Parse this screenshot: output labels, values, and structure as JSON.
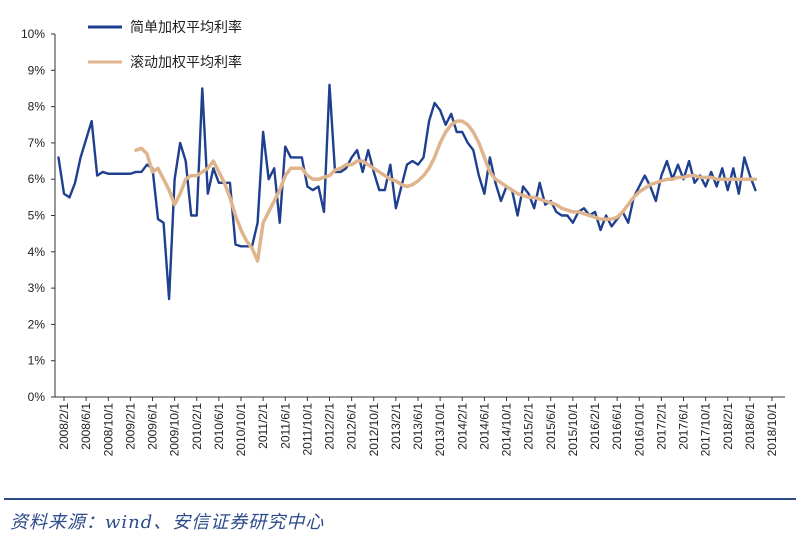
{
  "chart_data": {
    "type": "line",
    "title": "",
    "xlabel": "",
    "ylabel": "",
    "ylim": [
      0,
      10
    ],
    "y_ticks": [
      "0%",
      "1%",
      "2%",
      "3%",
      "4%",
      "5%",
      "6%",
      "7%",
      "8%",
      "9%",
      "10%"
    ],
    "x_ticks": [
      "2008/2/1",
      "2008/6/1",
      "2008/10/1",
      "2009/2/1",
      "2009/6/1",
      "2009/10/1",
      "2010/2/1",
      "2010/6/1",
      "2010/10/1",
      "2011/2/1",
      "2011/6/1",
      "2011/10/1",
      "2012/2/1",
      "2012/6/1",
      "2012/10/1",
      "2013/2/1",
      "2013/6/1",
      "2013/10/1",
      "2014/2/1",
      "2014/6/1",
      "2014/10/1",
      "2015/2/1",
      "2015/6/1",
      "2015/10/1",
      "2016/2/1",
      "2016/6/1",
      "2016/10/1",
      "2017/2/1",
      "2017/6/1",
      "2017/10/1",
      "2018/2/1",
      "2018/6/1",
      "2018/10/1"
    ],
    "legend_position": "top-left",
    "grid": false,
    "series": [
      {
        "name": "简单加权平均利率",
        "color": "#1f3f8f",
        "points": [
          [
            "2008/1/1",
            6.6
          ],
          [
            "2008/2/1",
            5.6
          ],
          [
            "2008/3/1",
            5.5
          ],
          [
            "2008/4/1",
            5.9
          ],
          [
            "2008/5/1",
            6.6
          ],
          [
            "2008/6/1",
            7.1
          ],
          [
            "2008/7/1",
            7.6
          ],
          [
            "2008/8/1",
            6.1
          ],
          [
            "2008/9/1",
            6.2
          ],
          [
            "2008/10/1",
            6.15
          ],
          [
            "2008/11/1",
            6.15
          ],
          [
            "2008/12/1",
            6.15
          ],
          [
            "2009/1/1",
            6.15
          ],
          [
            "2009/2/1",
            6.15
          ],
          [
            "2009/3/1",
            6.2
          ],
          [
            "2009/4/1",
            6.2
          ],
          [
            "2009/5/1",
            6.4
          ],
          [
            "2009/6/1",
            6.3
          ],
          [
            "2009/7/1",
            4.9
          ],
          [
            "2009/8/1",
            4.8
          ],
          [
            "2009/9/1",
            2.7
          ],
          [
            "2009/10/1",
            6.0
          ],
          [
            "2009/11/1",
            7.0
          ],
          [
            "2009/12/1",
            6.5
          ],
          [
            "2010/1/1",
            5.0
          ],
          [
            "2010/2/1",
            5.0
          ],
          [
            "2010/3/1",
            8.5
          ],
          [
            "2010/4/1",
            5.6
          ],
          [
            "2010/5/1",
            6.3
          ],
          [
            "2010/6/1",
            5.9
          ],
          [
            "2010/7/1",
            5.9
          ],
          [
            "2010/8/1",
            5.9
          ],
          [
            "2010/9/1",
            4.2
          ],
          [
            "2010/10/1",
            4.15
          ],
          [
            "2010/11/1",
            4.15
          ],
          [
            "2010/12/1",
            4.15
          ],
          [
            "2011/1/1",
            4.8
          ],
          [
            "2011/2/1",
            7.3
          ],
          [
            "2011/3/1",
            6.0
          ],
          [
            "2011/4/1",
            6.3
          ],
          [
            "2011/5/1",
            4.8
          ],
          [
            "2011/6/1",
            6.9
          ],
          [
            "2011/7/1",
            6.6
          ],
          [
            "2011/8/1",
            6.6
          ],
          [
            "2011/9/1",
            6.6
          ],
          [
            "2011/10/1",
            5.8
          ],
          [
            "2011/11/1",
            5.7
          ],
          [
            "2011/12/1",
            5.8
          ],
          [
            "2012/1/1",
            5.1
          ],
          [
            "2012/2/1",
            8.6
          ],
          [
            "2012/3/1",
            6.2
          ],
          [
            "2012/4/1",
            6.2
          ],
          [
            "2012/5/1",
            6.3
          ],
          [
            "2012/6/1",
            6.6
          ],
          [
            "2012/7/1",
            6.8
          ],
          [
            "2012/8/1",
            6.2
          ],
          [
            "2012/9/1",
            6.8
          ],
          [
            "2012/10/1",
            6.2
          ],
          [
            "2012/11/1",
            5.7
          ],
          [
            "2012/12/1",
            5.7
          ],
          [
            "2013/1/1",
            6.4
          ],
          [
            "2013/2/1",
            5.2
          ],
          [
            "2013/3/1",
            5.8
          ],
          [
            "2013/4/1",
            6.4
          ],
          [
            "2013/5/1",
            6.5
          ],
          [
            "2013/6/1",
            6.4
          ],
          [
            "2013/7/1",
            6.6
          ],
          [
            "2013/8/1",
            7.6
          ],
          [
            "2013/9/1",
            8.1
          ],
          [
            "2013/10/1",
            7.9
          ],
          [
            "2013/11/1",
            7.5
          ],
          [
            "2013/12/1",
            7.8
          ],
          [
            "2014/1/1",
            7.3
          ],
          [
            "2014/2/1",
            7.3
          ],
          [
            "2014/3/1",
            7.0
          ],
          [
            "2014/4/1",
            6.8
          ],
          [
            "2014/5/1",
            6.1
          ],
          [
            "2014/6/1",
            5.6
          ],
          [
            "2014/7/1",
            6.6
          ],
          [
            "2014/8/1",
            5.9
          ],
          [
            "2014/9/1",
            5.4
          ],
          [
            "2014/10/1",
            5.8
          ],
          [
            "2014/11/1",
            5.7
          ],
          [
            "2014/12/1",
            5.0
          ],
          [
            "2015/1/1",
            5.8
          ],
          [
            "2015/2/1",
            5.6
          ],
          [
            "2015/3/1",
            5.2
          ],
          [
            "2015/4/1",
            5.9
          ],
          [
            "2015/5/1",
            5.3
          ],
          [
            "2015/6/1",
            5.4
          ],
          [
            "2015/7/1",
            5.1
          ],
          [
            "2015/8/1",
            5.0
          ],
          [
            "2015/9/1",
            5.0
          ],
          [
            "2015/10/1",
            4.8
          ],
          [
            "2015/11/1",
            5.1
          ],
          [
            "2015/12/1",
            5.2
          ],
          [
            "2016/1/1",
            5.0
          ],
          [
            "2016/2/1",
            5.1
          ],
          [
            "2016/3/1",
            4.6
          ],
          [
            "2016/4/1",
            5.0
          ],
          [
            "2016/5/1",
            4.7
          ],
          [
            "2016/6/1",
            4.9
          ],
          [
            "2016/7/1",
            5.1
          ],
          [
            "2016/8/1",
            4.8
          ],
          [
            "2016/9/1",
            5.5
          ],
          [
            "2016/10/1",
            5.8
          ],
          [
            "2016/11/1",
            6.1
          ],
          [
            "2016/12/1",
            5.8
          ],
          [
            "2017/1/1",
            5.4
          ],
          [
            "2017/2/1",
            6.1
          ],
          [
            "2017/3/1",
            6.5
          ],
          [
            "2017/4/1",
            6.0
          ],
          [
            "2017/5/1",
            6.4
          ],
          [
            "2017/6/1",
            6.0
          ],
          [
            "2017/7/1",
            6.5
          ],
          [
            "2017/8/1",
            5.9
          ],
          [
            "2017/9/1",
            6.1
          ],
          [
            "2017/10/1",
            5.8
          ],
          [
            "2017/11/1",
            6.2
          ],
          [
            "2017/12/1",
            5.8
          ],
          [
            "2018/1/1",
            6.3
          ],
          [
            "2018/2/1",
            5.7
          ],
          [
            "2018/3/1",
            6.3
          ],
          [
            "2018/4/1",
            5.6
          ],
          [
            "2018/5/1",
            6.6
          ],
          [
            "2018/6/1",
            6.1
          ],
          [
            "2018/7/1",
            5.7
          ]
        ]
      },
      {
        "name": "滚动加权平均利率",
        "color": "#e0b48c",
        "points": [
          [
            "2009/3/1",
            6.8
          ],
          [
            "2009/4/1",
            6.85
          ],
          [
            "2009/5/1",
            6.7
          ],
          [
            "2009/6/1",
            6.2
          ],
          [
            "2009/7/1",
            6.3
          ],
          [
            "2009/8/1",
            6.0
          ],
          [
            "2009/9/1",
            5.7
          ],
          [
            "2009/10/1",
            5.3
          ],
          [
            "2009/11/1",
            5.6
          ],
          [
            "2009/12/1",
            6.0
          ],
          [
            "2010/1/1",
            6.1
          ],
          [
            "2010/2/1",
            6.1
          ],
          [
            "2010/3/1",
            6.2
          ],
          [
            "2010/4/1",
            6.3
          ],
          [
            "2010/5/1",
            6.5
          ],
          [
            "2010/6/1",
            6.2
          ],
          [
            "2010/7/1",
            5.9
          ],
          [
            "2010/8/1",
            5.5
          ],
          [
            "2010/9/1",
            5.0
          ],
          [
            "2010/10/1",
            4.6
          ],
          [
            "2010/11/1",
            4.3
          ],
          [
            "2010/12/1",
            4.1
          ],
          [
            "2011/1/1",
            3.75
          ],
          [
            "2011/2/1",
            4.8
          ],
          [
            "2011/3/1",
            5.1
          ],
          [
            "2011/4/1",
            5.4
          ],
          [
            "2011/5/1",
            5.7
          ],
          [
            "2011/6/1",
            6.1
          ],
          [
            "2011/7/1",
            6.3
          ],
          [
            "2011/8/1",
            6.3
          ],
          [
            "2011/9/1",
            6.3
          ],
          [
            "2011/10/1",
            6.1
          ],
          [
            "2011/11/1",
            6.0
          ],
          [
            "2011/12/1",
            6.0
          ],
          [
            "2012/1/1",
            6.05
          ],
          [
            "2012/2/1",
            6.1
          ],
          [
            "2012/3/1",
            6.25
          ],
          [
            "2012/4/1",
            6.3
          ],
          [
            "2012/5/1",
            6.4
          ],
          [
            "2012/6/1",
            6.4
          ],
          [
            "2012/7/1",
            6.5
          ],
          [
            "2012/8/1",
            6.5
          ],
          [
            "2012/9/1",
            6.4
          ],
          [
            "2012/10/1",
            6.3
          ],
          [
            "2012/11/1",
            6.2
          ],
          [
            "2012/12/1",
            6.1
          ],
          [
            "2013/1/1",
            6.0
          ],
          [
            "2013/2/1",
            5.95
          ],
          [
            "2013/3/1",
            5.85
          ],
          [
            "2013/4/1",
            5.8
          ],
          [
            "2013/5/1",
            5.85
          ],
          [
            "2013/6/1",
            5.95
          ],
          [
            "2013/7/1",
            6.1
          ],
          [
            "2013/8/1",
            6.3
          ],
          [
            "2013/9/1",
            6.6
          ],
          [
            "2013/10/1",
            7.0
          ],
          [
            "2013/11/1",
            7.3
          ],
          [
            "2013/12/1",
            7.5
          ],
          [
            "2014/1/1",
            7.6
          ],
          [
            "2014/2/1",
            7.6
          ],
          [
            "2014/3/1",
            7.5
          ],
          [
            "2014/4/1",
            7.3
          ],
          [
            "2014/5/1",
            7.0
          ],
          [
            "2014/6/1",
            6.6
          ],
          [
            "2014/7/1",
            6.2
          ],
          [
            "2014/8/1",
            6.0
          ],
          [
            "2014/9/1",
            5.9
          ],
          [
            "2014/10/1",
            5.8
          ],
          [
            "2014/11/1",
            5.7
          ],
          [
            "2014/12/1",
            5.6
          ],
          [
            "2015/1/1",
            5.55
          ],
          [
            "2015/2/1",
            5.5
          ],
          [
            "2015/3/1",
            5.5
          ],
          [
            "2015/4/1",
            5.45
          ],
          [
            "2015/5/1",
            5.4
          ],
          [
            "2015/6/1",
            5.35
          ],
          [
            "2015/7/1",
            5.3
          ],
          [
            "2015/8/1",
            5.2
          ],
          [
            "2015/9/1",
            5.15
          ],
          [
            "2015/10/1",
            5.1
          ],
          [
            "2015/11/1",
            5.1
          ],
          [
            "2015/12/1",
            5.05
          ],
          [
            "2016/1/1",
            5.0
          ],
          [
            "2016/2/1",
            4.95
          ],
          [
            "2016/3/1",
            4.9
          ],
          [
            "2016/4/1",
            4.9
          ],
          [
            "2016/5/1",
            4.9
          ],
          [
            "2016/6/1",
            4.95
          ],
          [
            "2016/7/1",
            5.1
          ],
          [
            "2016/8/1",
            5.3
          ],
          [
            "2016/9/1",
            5.5
          ],
          [
            "2016/10/1",
            5.65
          ],
          [
            "2016/11/1",
            5.75
          ],
          [
            "2016/12/1",
            5.85
          ],
          [
            "2017/1/1",
            5.9
          ],
          [
            "2017/2/1",
            5.95
          ],
          [
            "2017/3/1",
            6.0
          ],
          [
            "2017/4/1",
            6.0
          ],
          [
            "2017/5/1",
            6.05
          ],
          [
            "2017/6/1",
            6.05
          ],
          [
            "2017/7/1",
            6.1
          ],
          [
            "2017/8/1",
            6.1
          ],
          [
            "2017/9/1",
            6.05
          ],
          [
            "2017/10/1",
            6.05
          ],
          [
            "2017/11/1",
            6.05
          ],
          [
            "2017/12/1",
            6.0
          ],
          [
            "2018/1/1",
            6.0
          ],
          [
            "2018/2/1",
            6.0
          ],
          [
            "2018/3/1",
            6.0
          ],
          [
            "2018/4/1",
            6.0
          ],
          [
            "2018/5/1",
            6.0
          ],
          [
            "2018/6/1",
            6.0
          ],
          [
            "2018/7/1",
            6.0
          ]
        ]
      }
    ]
  },
  "source": {
    "text": "资料来源：wind、安信证券研究中心"
  }
}
